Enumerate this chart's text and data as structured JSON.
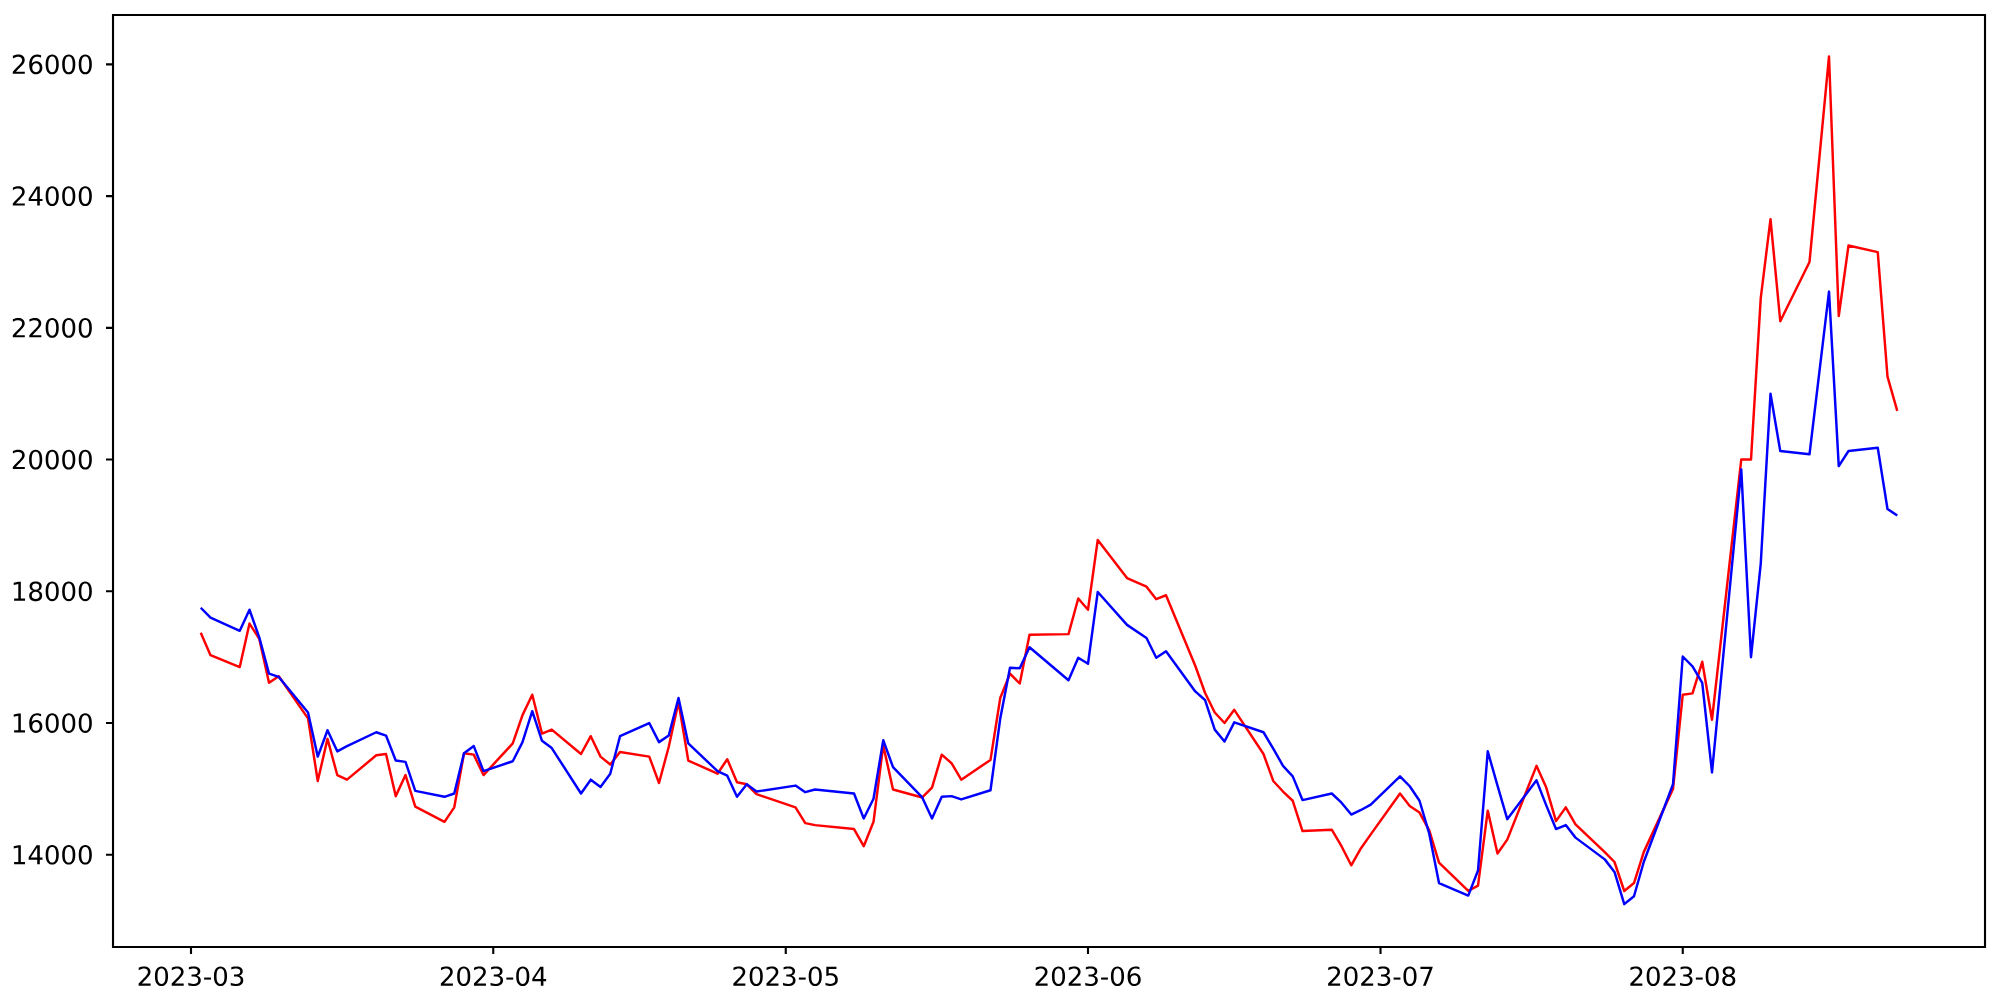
{
  "chart_data": {
    "type": "line",
    "x": [
      "2023-03-02",
      "2023-03-03",
      "2023-03-06",
      "2023-03-07",
      "2023-03-08",
      "2023-03-09",
      "2023-03-10",
      "2023-03-13",
      "2023-03-14",
      "2023-03-15",
      "2023-03-16",
      "2023-03-17",
      "2023-03-20",
      "2023-03-21",
      "2023-03-22",
      "2023-03-23",
      "2023-03-24",
      "2023-03-27",
      "2023-03-28",
      "2023-03-29",
      "2023-03-30",
      "2023-03-31",
      "2023-04-03",
      "2023-04-04",
      "2023-04-05",
      "2023-04-06",
      "2023-04-07",
      "2023-04-10",
      "2023-04-11",
      "2023-04-12",
      "2023-04-13",
      "2023-04-14",
      "2023-04-17",
      "2023-04-18",
      "2023-04-19",
      "2023-04-20",
      "2023-04-21",
      "2023-04-24",
      "2023-04-25",
      "2023-04-26",
      "2023-04-27",
      "2023-04-28",
      "2023-05-02",
      "2023-05-03",
      "2023-05-04",
      "2023-05-08",
      "2023-05-09",
      "2023-05-10",
      "2023-05-11",
      "2023-05-12",
      "2023-05-15",
      "2023-05-16",
      "2023-05-17",
      "2023-05-18",
      "2023-05-19",
      "2023-05-22",
      "2023-05-23",
      "2023-05-24",
      "2023-05-25",
      "2023-05-26",
      "2023-05-30",
      "2023-05-31",
      "2023-06-01",
      "2023-06-02",
      "2023-06-05",
      "2023-06-07",
      "2023-06-08",
      "2023-06-09",
      "2023-06-12",
      "2023-06-13",
      "2023-06-14",
      "2023-06-15",
      "2023-06-16",
      "2023-06-19",
      "2023-06-20",
      "2023-06-21",
      "2023-06-22",
      "2023-06-23",
      "2023-06-26",
      "2023-06-27",
      "2023-06-28",
      "2023-06-29",
      "2023-06-30",
      "2023-07-03",
      "2023-07-04",
      "2023-07-05",
      "2023-07-06",
      "2023-07-07",
      "2023-07-10",
      "2023-07-11",
      "2023-07-12",
      "2023-07-13",
      "2023-07-14",
      "2023-07-17",
      "2023-07-18",
      "2023-07-19",
      "2023-07-20",
      "2023-07-21",
      "2023-07-24",
      "2023-07-25",
      "2023-07-26",
      "2023-07-27",
      "2023-07-28",
      "2023-07-31",
      "2023-08-01",
      "2023-08-02",
      "2023-08-03",
      "2023-08-04",
      "2023-08-07",
      "2023-08-08",
      "2023-08-09",
      "2023-08-10",
      "2023-08-11",
      "2023-08-14",
      "2023-08-16",
      "2023-08-17",
      "2023-08-18",
      "2023-08-21",
      "2023-08-22",
      "2023-08-23"
    ],
    "series": [
      {
        "color": "#ff0000",
        "values": [
          17370,
          17030,
          16850,
          17510,
          17280,
          16610,
          16710,
          16070,
          15120,
          15760,
          15210,
          15140,
          15510,
          15530,
          14890,
          15210,
          14730,
          14500,
          14720,
          15540,
          15520,
          15210,
          15690,
          16120,
          16430,
          15840,
          15900,
          15530,
          15800,
          15490,
          15370,
          15560,
          15490,
          15090,
          15640,
          16320,
          15430,
          15230,
          15450,
          15100,
          15070,
          14920,
          14720,
          14480,
          14450,
          14390,
          14130,
          14500,
          15660,
          14990,
          14870,
          15020,
          15520,
          15390,
          15140,
          15440,
          16380,
          16750,
          16600,
          17340,
          17350,
          17890,
          17720,
          18780,
          18200,
          18070,
          17880,
          17940,
          16870,
          16460,
          16160,
          16000,
          16200,
          15530,
          15120,
          14960,
          14820,
          14360,
          14380,
          14130,
          13840,
          14100,
          14310,
          14930,
          14740,
          14640,
          14370,
          13880,
          13450,
          13530,
          14670,
          14020,
          14230,
          15350,
          15020,
          14510,
          14720,
          14460,
          14040,
          13890,
          13450,
          13570,
          14040,
          15000,
          16430,
          16450,
          16930,
          16050,
          20000,
          20000,
          22450,
          23650,
          22100,
          23000,
          26120,
          22180,
          23250,
          23150,
          21260,
          20740
        ]
      },
      {
        "color": "#0000ff",
        "values": [
          17750,
          17600,
          17400,
          17720,
          17300,
          16750,
          16700,
          16160,
          15490,
          15890,
          15570,
          15650,
          15860,
          15810,
          15430,
          15410,
          14970,
          14880,
          14930,
          15540,
          15650,
          15270,
          15420,
          15710,
          16180,
          15730,
          15620,
          14930,
          15140,
          15030,
          15230,
          15800,
          16000,
          15710,
          15810,
          16380,
          15690,
          15270,
          15200,
          14880,
          15070,
          14960,
          15050,
          14950,
          14990,
          14930,
          14550,
          14850,
          15740,
          15330,
          14870,
          14550,
          14880,
          14890,
          14840,
          14980,
          16070,
          16840,
          16830,
          17150,
          16650,
          16990,
          16900,
          17990,
          17490,
          17290,
          16990,
          17090,
          16480,
          16350,
          15900,
          15720,
          16010,
          15860,
          15610,
          15350,
          15190,
          14830,
          14930,
          14790,
          14610,
          14680,
          14760,
          15190,
          15040,
          14820,
          14320,
          13570,
          13380,
          13760,
          15570,
          15050,
          14540,
          15130,
          14750,
          14390,
          14450,
          14260,
          13930,
          13740,
          13250,
          13370,
          13890,
          15070,
          17010,
          16860,
          16610,
          15250,
          19850,
          17000,
          18420,
          21000,
          20130,
          20080,
          22550,
          19900,
          20130,
          20180,
          19250,
          19150
        ]
      }
    ],
    "xlim": [
      "2023-02-21",
      "2023-09-01"
    ],
    "xticks": [
      {
        "value": "2023-03-01",
        "label": "2023-03"
      },
      {
        "value": "2023-04-01",
        "label": "2023-04"
      },
      {
        "value": "2023-05-01",
        "label": "2023-05"
      },
      {
        "value": "2023-06-01",
        "label": "2023-06"
      },
      {
        "value": "2023-07-01",
        "label": "2023-07"
      },
      {
        "value": "2023-08-01",
        "label": "2023-08"
      }
    ],
    "ylim": [
      12600,
      26750
    ],
    "yticks": [
      14000,
      16000,
      18000,
      20000,
      22000,
      24000,
      26000
    ]
  }
}
